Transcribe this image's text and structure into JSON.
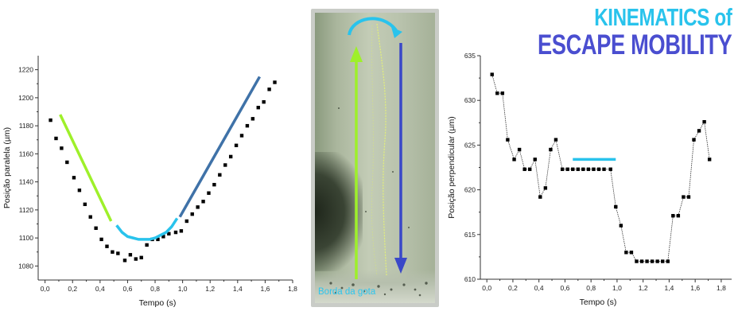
{
  "title": {
    "line1": "KINEMATICS of",
    "line2": "ESCAPE MOBILITY",
    "line1_color": "#29c3ec",
    "line2_color": "#4a4ed0"
  },
  "photo": {
    "caption": "Borda da gota",
    "arrow_up_color": "#9ef02a",
    "arrow_down_color": "#3a48c8",
    "arc_color": "#29c3ec"
  },
  "chart_data": [
    {
      "type": "scatter",
      "xlabel": "Tempo (s)",
      "ylabel": "Posição paralela (µm)",
      "xlim": [
        -0.05,
        1.8
      ],
      "ylim": [
        1070,
        1230
      ],
      "xticks": [
        "0,0",
        "0,2",
        "0,4",
        "0,6",
        "0,8",
        "1,0",
        "1,2",
        "1,4",
        "1,6",
        "1,8"
      ],
      "xtick_values": [
        0.0,
        0.2,
        0.4,
        0.6,
        0.8,
        1.0,
        1.2,
        1.4,
        1.6,
        1.8
      ],
      "yticks": [
        "1080",
        "1100",
        "1120",
        "1140",
        "1160",
        "1180",
        "1200",
        "1220"
      ],
      "ytick_values": [
        1080,
        1100,
        1120,
        1140,
        1160,
        1180,
        1200,
        1220
      ],
      "series": [
        {
          "x": [
            0.04,
            0.08,
            0.12,
            0.16,
            0.21,
            0.25,
            0.29,
            0.33,
            0.37,
            0.41,
            0.45,
            0.49,
            0.53,
            0.58,
            0.62,
            0.66,
            0.7,
            0.74,
            0.78,
            0.82,
            0.86,
            0.9,
            0.95,
            0.99,
            1.03,
            1.07,
            1.11,
            1.15,
            1.19,
            1.23,
            1.27,
            1.31,
            1.35,
            1.39,
            1.43,
            1.47,
            1.51,
            1.55,
            1.59,
            1.63,
            1.67
          ],
          "y": [
            1184,
            1171,
            1164,
            1154,
            1143,
            1134,
            1124,
            1115,
            1107,
            1099,
            1094,
            1090,
            1089,
            1084,
            1088,
            1085,
            1086,
            1095,
            1099,
            1099,
            1101,
            1103,
            1104,
            1105,
            1112,
            1117,
            1122,
            1126,
            1132,
            1138,
            1145,
            1152,
            1158,
            1166,
            1173,
            1180,
            1185,
            1193,
            1197,
            1206,
            1211
          ]
        }
      ],
      "overlays": [
        {
          "color": "#9ef02a",
          "x": [
            0.11,
            0.48
          ],
          "y": [
            1188,
            1112
          ]
        },
        {
          "color": "#29c3ec",
          "shape": "curve",
          "x": [
            0.52,
            0.56,
            0.6,
            0.64,
            0.68,
            0.72,
            0.76,
            0.8,
            0.84,
            0.88,
            0.92,
            0.96
          ],
          "y": [
            1109,
            1104,
            1101,
            1100,
            1099,
            1099,
            1099,
            1100,
            1102,
            1104,
            1108,
            1114
          ]
        },
        {
          "color": "#3f72a8",
          "x": [
            0.98,
            1.56
          ],
          "y": [
            1115,
            1215
          ]
        }
      ]
    },
    {
      "type": "line",
      "xlabel": "Tempo (s)",
      "ylabel": "Posição perpendicular (µm)",
      "xlim": [
        -0.05,
        1.88
      ],
      "ylim": [
        610,
        635
      ],
      "xticks": [
        "0,0",
        "0,2",
        "0,4",
        "0,6",
        "0,8",
        "1,0",
        "1,2",
        "1,4",
        "1,6",
        "1,8"
      ],
      "xtick_values": [
        0.0,
        0.2,
        0.4,
        0.6,
        0.8,
        1.0,
        1.2,
        1.4,
        1.6,
        1.8
      ],
      "yticks": [
        "610",
        "615",
        "620",
        "625",
        "630",
        "635"
      ],
      "ytick_values": [
        610,
        615,
        620,
        625,
        630,
        635
      ],
      "series": [
        {
          "x": [
            0.04,
            0.08,
            0.12,
            0.16,
            0.21,
            0.25,
            0.29,
            0.33,
            0.37,
            0.41,
            0.45,
            0.49,
            0.53,
            0.58,
            0.62,
            0.66,
            0.7,
            0.74,
            0.78,
            0.82,
            0.86,
            0.9,
            0.95,
            0.99,
            1.03,
            1.07,
            1.11,
            1.15,
            1.19,
            1.23,
            1.27,
            1.31,
            1.35,
            1.39,
            1.43,
            1.47,
            1.51,
            1.55,
            1.59,
            1.63,
            1.67,
            1.71,
            1.75,
            1.79,
            1.83,
            1.87
          ],
          "y": [
            632.9,
            630.8,
            630.8,
            625.6,
            623.4,
            624.5,
            622.3,
            622.3,
            623.4,
            619.2,
            620.2,
            624.5,
            625.6,
            622.3,
            622.3,
            622.3,
            622.3,
            622.3,
            622.3,
            622.3,
            622.3,
            622.3,
            622.3,
            618.1,
            616.0,
            613.0,
            613.0,
            612.0,
            612.0,
            612.0,
            612.0,
            612.0,
            612.0,
            612.0,
            617.1,
            617.1,
            619.2,
            619.2,
            625.6,
            626.6,
            627.6,
            623.4,
            null,
            null,
            null,
            null
          ]
        }
      ],
      "overlays": [
        {
          "color": "#29c3ec",
          "x": [
            0.66,
            0.99
          ],
          "y": [
            623.4,
            623.4
          ]
        }
      ]
    }
  ]
}
